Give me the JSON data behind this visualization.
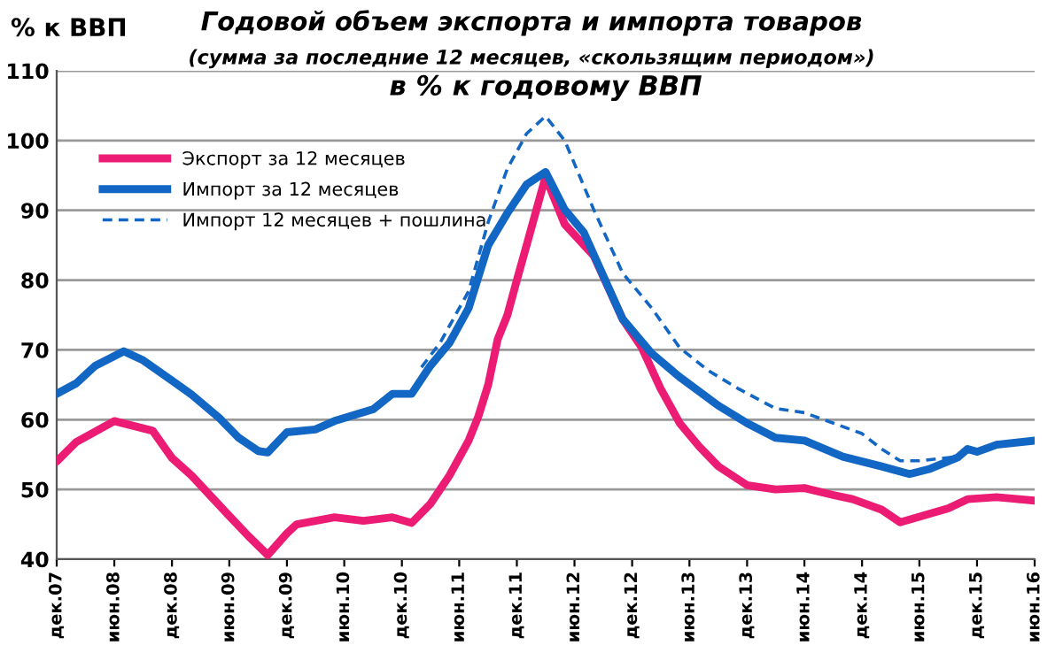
{
  "chart_data": {
    "type": "line",
    "title": "Годовой объем экспорта и импорта товаров",
    "subtitle": "(сумма за последние 12 месяцев, «скользящим периодом»)",
    "ylabel": "% к ВВП",
    "annotations": [
      "в % к годовому ВВП"
    ],
    "xlim": [
      "2007-12",
      "2016-06"
    ],
    "xticks": [
      {
        "value": "2007-12",
        "label": "дек.07"
      },
      {
        "value": "2008-06",
        "label": "июн.08"
      },
      {
        "value": "2008-12",
        "label": "дек.08"
      },
      {
        "value": "2009-06",
        "label": "июн.09"
      },
      {
        "value": "2009-12",
        "label": "дек.09"
      },
      {
        "value": "2010-06",
        "label": "июн.10"
      },
      {
        "value": "2010-12",
        "label": "дек.10"
      },
      {
        "value": "2011-06",
        "label": "июн.11"
      },
      {
        "value": "2011-12",
        "label": "дек.11"
      },
      {
        "value": "2012-06",
        "label": "июн.12"
      },
      {
        "value": "2012-12",
        "label": "дек.12"
      },
      {
        "value": "2013-06",
        "label": "июн.13"
      },
      {
        "value": "2013-12",
        "label": "дек.13"
      },
      {
        "value": "2014-06",
        "label": "июн.14"
      },
      {
        "value": "2014-12",
        "label": "дек.14"
      },
      {
        "value": "2015-06",
        "label": "июн.15"
      },
      {
        "value": "2015-12",
        "label": "дек.15"
      },
      {
        "value": "2016-06",
        "label": "июн.16"
      }
    ],
    "ylim": [
      40,
      110
    ],
    "yticks": [
      40,
      50,
      60,
      70,
      80,
      90,
      100,
      110
    ],
    "grid": "y",
    "legend": "top left",
    "marker": "none",
    "series": [
      {
        "name": "Экспорт за 12 месяцев",
        "color": "#ec1c74",
        "line_style": "solid",
        "x": [
          "2007-12",
          "2008-02",
          "2008-06",
          "2008-10",
          "2008-12",
          "2009-02",
          "2009-06",
          "2009-08",
          "2009-10",
          "2009-12",
          "2010-01",
          "2010-05",
          "2010-08",
          "2010-11",
          "2011-01",
          "2011-03",
          "2011-05",
          "2011-07",
          "2011-08",
          "2011-09",
          "2011-10",
          "2011-11",
          "2011-12",
          "2012-01",
          "2012-03",
          "2012-05",
          "2012-08",
          "2012-11",
          "2013-01",
          "2013-03",
          "2013-05",
          "2013-07",
          "2013-09",
          "2013-12",
          "2014-03",
          "2014-06",
          "2014-09",
          "2014-11",
          "2015-02",
          "2015-04",
          "2015-06",
          "2015-09",
          "2015-11",
          "2016-02",
          "2016-06"
        ],
        "values": [
          54,
          56.8,
          59.8,
          58.4,
          54.5,
          52,
          46.2,
          43.3,
          40.6,
          43.7,
          45,
          46,
          45.5,
          46,
          45.2,
          47.9,
          52,
          57,
          60.5,
          65,
          71.5,
          75,
          80,
          85,
          94.8,
          88,
          83.5,
          74.4,
          70.3,
          64.5,
          59.5,
          56.2,
          53.3,
          50.6,
          50,
          50.2,
          49.2,
          48.6,
          47.1,
          45.3,
          46.1,
          47.3,
          48.6,
          48.9,
          48.4
        ]
      },
      {
        "name": "Импорт за 12 месяцев",
        "color": "#1266c4",
        "line_style": "solid",
        "x": [
          "2007-12",
          "2008-02",
          "2008-04",
          "2008-07",
          "2008-09",
          "2008-12",
          "2009-02",
          "2009-05",
          "2009-07",
          "2009-09",
          "2009-10",
          "2009-12",
          "2010-03",
          "2010-05",
          "2010-09",
          "2010-11",
          "2011-01",
          "2011-03",
          "2011-05",
          "2011-07",
          "2011-09",
          "2011-11",
          "2012-01",
          "2012-03",
          "2012-05",
          "2012-07",
          "2012-11",
          "2013-02",
          "2013-05",
          "2013-09",
          "2013-12",
          "2014-03",
          "2014-06",
          "2014-10",
          "2015-02",
          "2015-05",
          "2015-07",
          "2015-10",
          "2015-11",
          "2015-12",
          "2016-02",
          "2016-06"
        ],
        "values": [
          63.7,
          65.2,
          67.7,
          69.8,
          68.5,
          65.6,
          63.6,
          60.2,
          57.4,
          55.5,
          55.3,
          58.2,
          58.6,
          59.8,
          61.5,
          63.7,
          63.7,
          67.7,
          71,
          76,
          85,
          89.6,
          93.7,
          95.5,
          90.1,
          86.8,
          74.4,
          69.5,
          66.1,
          62,
          59.5,
          57.4,
          57,
          54.7,
          53.3,
          52.2,
          52.9,
          54.6,
          55.8,
          55.4,
          56.4,
          57
        ]
      },
      {
        "name": "Импорт 12 месяцев + пошлина",
        "color": "#1266c4",
        "line_style": "dashed",
        "x": [
          "2011-02",
          "2011-04",
          "2011-07",
          "2011-09",
          "2011-11",
          "2012-01",
          "2012-03",
          "2012-05",
          "2012-08",
          "2012-11",
          "2013-02",
          "2013-05",
          "2013-08",
          "2013-11",
          "2014-03",
          "2014-06",
          "2014-09",
          "2014-12",
          "2015-02",
          "2015-04",
          "2015-06",
          "2015-10"
        ],
        "values": [
          67.5,
          71,
          78.4,
          88.3,
          96,
          101,
          103.5,
          100,
          90.1,
          81,
          76,
          70.3,
          67,
          64.5,
          61.6,
          61,
          59.5,
          58,
          55.8,
          54.1,
          54.1,
          54.7
        ]
      }
    ]
  }
}
